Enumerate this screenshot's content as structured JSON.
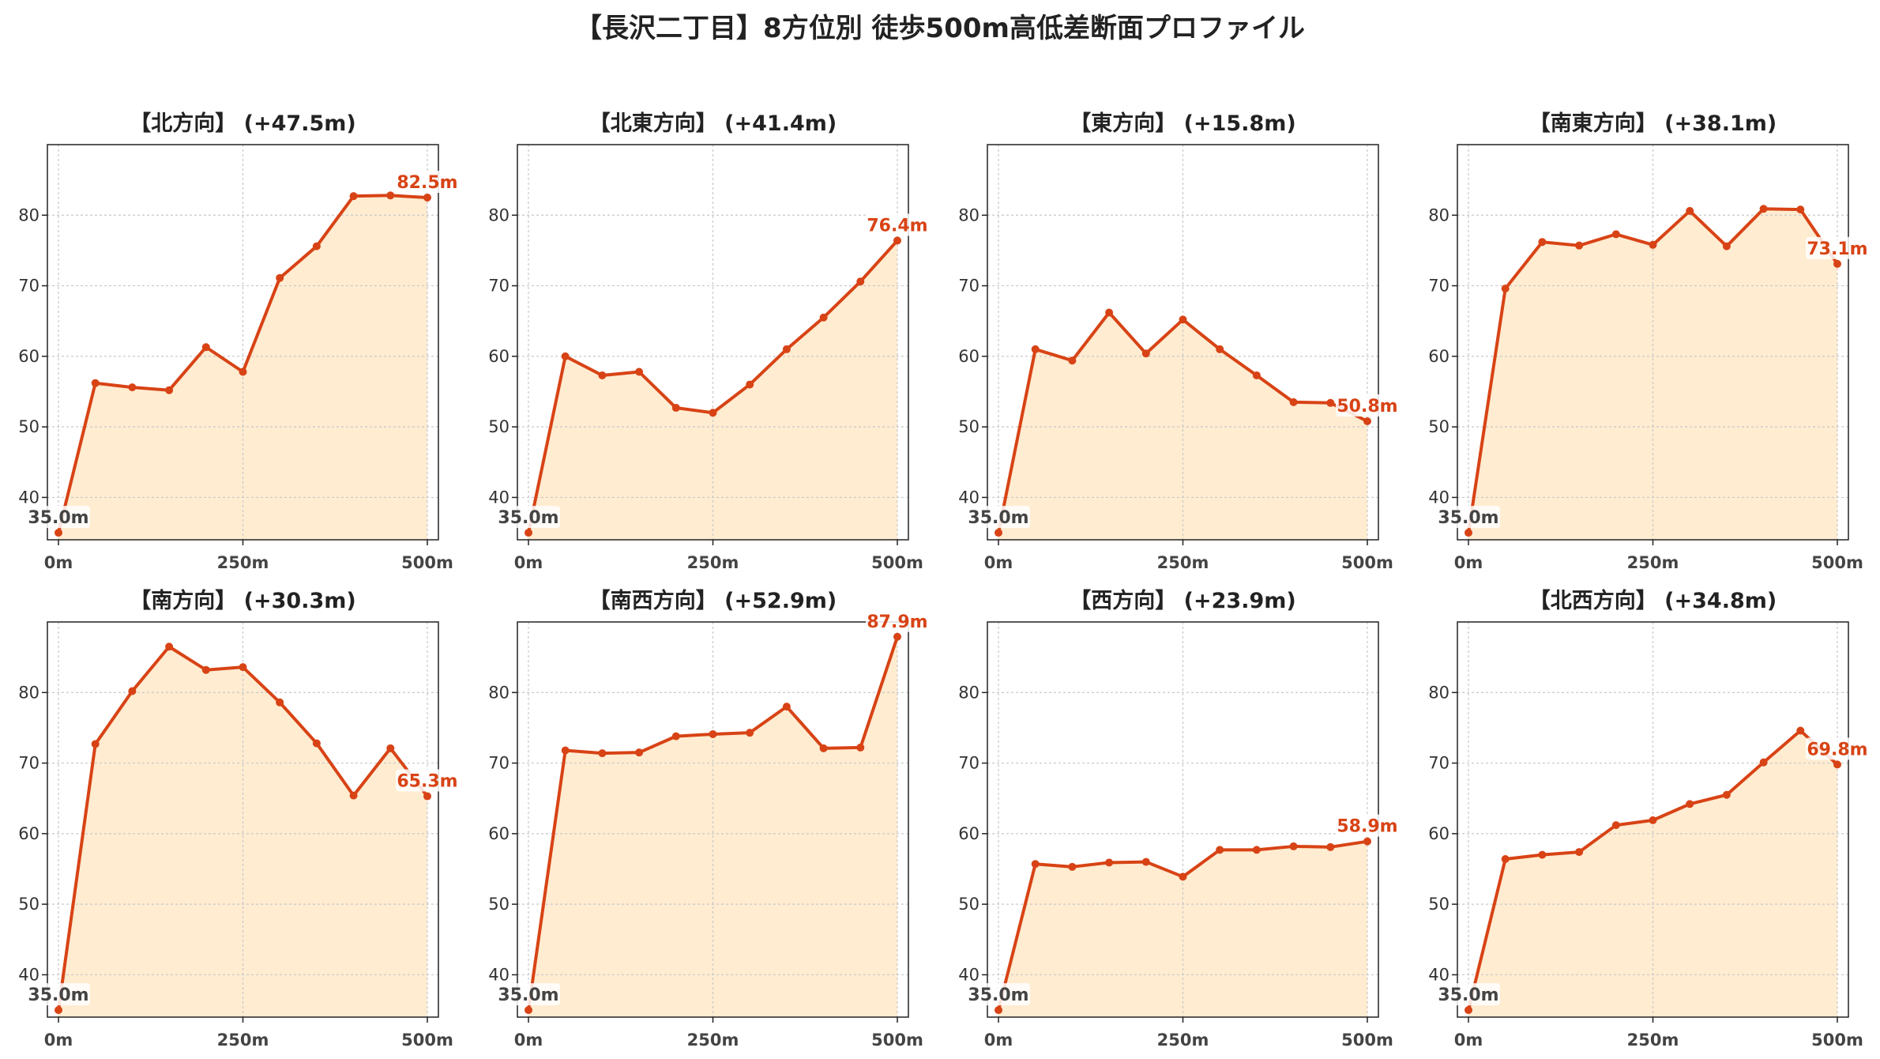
{
  "title": "【長沢二丁目】8方位別 徒歩500m高低差断面プロファイル",
  "colors": {
    "line": "#d84315",
    "fill": "#ffecd1",
    "grid": "#c8c8c8",
    "start_label": "#444444"
  },
  "chart_data": [
    {
      "type": "area",
      "title": "【北方向】 (+47.5m)",
      "x": [
        0,
        50,
        100,
        150,
        200,
        250,
        300,
        350,
        400,
        450,
        500
      ],
      "values": [
        35.0,
        56.2,
        55.6,
        55.2,
        61.3,
        57.8,
        71.1,
        75.6,
        82.7,
        82.8,
        82.5
      ],
      "start_label": "35.0m",
      "end_label": "82.5m",
      "xticks": [
        "0m",
        "250m",
        "500m"
      ],
      "yticks": [
        40,
        50,
        60,
        70,
        80
      ],
      "xlim": [
        -15,
        515
      ],
      "ylim": [
        34,
        90
      ],
      "grid": true
    },
    {
      "type": "area",
      "title": "【北東方向】 (+41.4m)",
      "x": [
        0,
        50,
        100,
        150,
        200,
        250,
        300,
        350,
        400,
        450,
        500
      ],
      "values": [
        35.0,
        60.0,
        57.3,
        57.8,
        52.7,
        52.0,
        56.0,
        61.0,
        65.5,
        70.6,
        76.4
      ],
      "start_label": "35.0m",
      "end_label": "76.4m",
      "xticks": [
        "0m",
        "250m",
        "500m"
      ],
      "yticks": [
        40,
        50,
        60,
        70,
        80
      ],
      "xlim": [
        -15,
        515
      ],
      "ylim": [
        34,
        90
      ],
      "grid": true
    },
    {
      "type": "area",
      "title": "【東方向】 (+15.8m)",
      "x": [
        0,
        50,
        100,
        150,
        200,
        250,
        300,
        350,
        400,
        450,
        500
      ],
      "values": [
        35.0,
        61.0,
        59.4,
        66.2,
        60.4,
        65.2,
        61.0,
        57.3,
        53.5,
        53.4,
        50.8
      ],
      "start_label": "35.0m",
      "end_label": "50.8m",
      "xticks": [
        "0m",
        "250m",
        "500m"
      ],
      "yticks": [
        40,
        50,
        60,
        70,
        80
      ],
      "xlim": [
        -15,
        515
      ],
      "ylim": [
        34,
        90
      ],
      "grid": true
    },
    {
      "type": "area",
      "title": "【南東方向】 (+38.1m)",
      "x": [
        0,
        50,
        100,
        150,
        200,
        250,
        300,
        350,
        400,
        450,
        500
      ],
      "values": [
        35.0,
        69.6,
        76.2,
        75.7,
        77.3,
        75.8,
        80.6,
        75.6,
        80.9,
        80.8,
        73.1
      ],
      "start_label": "35.0m",
      "end_label": "73.1m",
      "xticks": [
        "0m",
        "250m",
        "500m"
      ],
      "yticks": [
        40,
        50,
        60,
        70,
        80
      ],
      "xlim": [
        -15,
        515
      ],
      "ylim": [
        34,
        90
      ],
      "grid": true
    },
    {
      "type": "area",
      "title": "【南方向】 (+30.3m)",
      "x": [
        0,
        50,
        100,
        150,
        200,
        250,
        300,
        350,
        400,
        450,
        500
      ],
      "values": [
        35.0,
        72.7,
        80.2,
        86.5,
        83.2,
        83.6,
        78.6,
        72.8,
        65.4,
        72.1,
        65.3
      ],
      "start_label": "35.0m",
      "end_label": "65.3m",
      "xticks": [
        "0m",
        "250m",
        "500m"
      ],
      "yticks": [
        40,
        50,
        60,
        70,
        80
      ],
      "xlim": [
        -15,
        515
      ],
      "ylim": [
        34,
        90
      ],
      "grid": true
    },
    {
      "type": "area",
      "title": "【南西方向】 (+52.9m)",
      "x": [
        0,
        50,
        100,
        150,
        200,
        250,
        300,
        350,
        400,
        450,
        500
      ],
      "values": [
        35.0,
        71.8,
        71.4,
        71.5,
        73.8,
        74.1,
        74.3,
        78.0,
        72.1,
        72.2,
        87.9
      ],
      "start_label": "35.0m",
      "end_label": "87.9m",
      "xticks": [
        "0m",
        "250m",
        "500m"
      ],
      "yticks": [
        40,
        50,
        60,
        70,
        80
      ],
      "xlim": [
        -15,
        515
      ],
      "ylim": [
        34,
        90
      ],
      "grid": true
    },
    {
      "type": "area",
      "title": "【西方向】 (+23.9m)",
      "x": [
        0,
        50,
        100,
        150,
        200,
        250,
        300,
        350,
        400,
        450,
        500
      ],
      "values": [
        35.0,
        55.7,
        55.3,
        55.9,
        56.0,
        53.9,
        57.7,
        57.7,
        58.2,
        58.1,
        58.9
      ],
      "start_label": "35.0m",
      "end_label": "58.9m",
      "xticks": [
        "0m",
        "250m",
        "500m"
      ],
      "yticks": [
        40,
        50,
        60,
        70,
        80
      ],
      "xlim": [
        -15,
        515
      ],
      "ylim": [
        34,
        90
      ],
      "grid": true
    },
    {
      "type": "area",
      "title": "【北西方向】 (+34.8m)",
      "x": [
        0,
        50,
        100,
        150,
        200,
        250,
        300,
        350,
        400,
        450,
        500
      ],
      "values": [
        35.0,
        56.4,
        57.0,
        57.4,
        61.2,
        61.9,
        64.2,
        65.5,
        70.1,
        74.6,
        69.8
      ],
      "start_label": "35.0m",
      "end_label": "69.8m",
      "xticks": [
        "0m",
        "250m",
        "500m"
      ],
      "yticks": [
        40,
        50,
        60,
        70,
        80
      ],
      "xlim": [
        -15,
        515
      ],
      "ylim": [
        34,
        90
      ],
      "grid": true
    }
  ]
}
